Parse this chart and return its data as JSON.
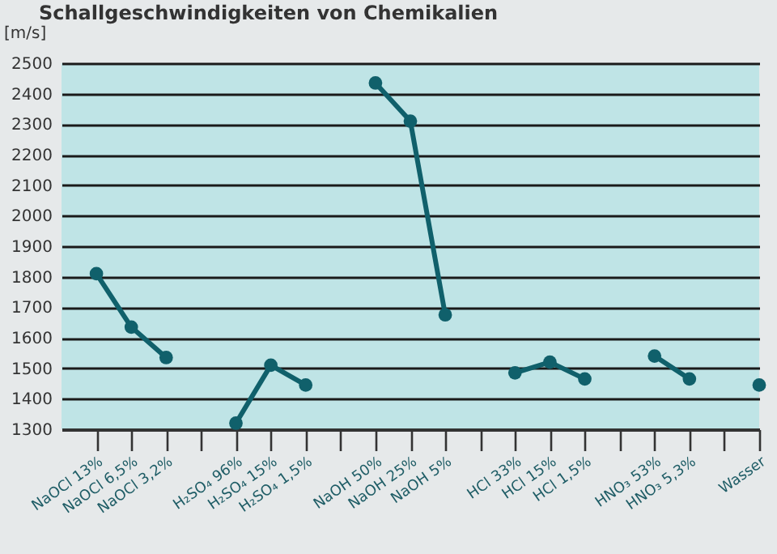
{
  "chart_data": {
    "type": "line",
    "title": "Schallgeschwindigkeiten von Chemikalien",
    "ylabel": "[m/s]",
    "categories": [
      "NaOCl 13%",
      "NaOCl 6,5%",
      "NaOCl 3,2%",
      null,
      "H₂SO₄ 96%",
      "H₂SO₄ 15%",
      "H₂SO₄ 1,5%",
      null,
      "NaOH 50%",
      "NaOH 25%",
      "NaOH 5%",
      null,
      "HCl 33%",
      "HCl 15%",
      "HCl 1,5%",
      null,
      "HNO₃ 53%",
      "HNO₃ 5,3%",
      null,
      "Wasser"
    ],
    "series": [
      {
        "color": "#10606b",
        "values": [
          1810,
          1635,
          1535,
          null,
          1320,
          1510,
          1445,
          null,
          2435,
          2310,
          1675,
          null,
          1485,
          1520,
          1465,
          null,
          1540,
          1465,
          null,
          1445
        ]
      }
    ],
    "ylim": [
      1300,
      2500
    ],
    "yticks": [
      1300,
      1400,
      1500,
      1600,
      1700,
      1800,
      1900,
      2000,
      2100,
      2200,
      2300,
      2400,
      2500
    ],
    "grid": "y",
    "marker": "circle",
    "line_style": "solid"
  }
}
